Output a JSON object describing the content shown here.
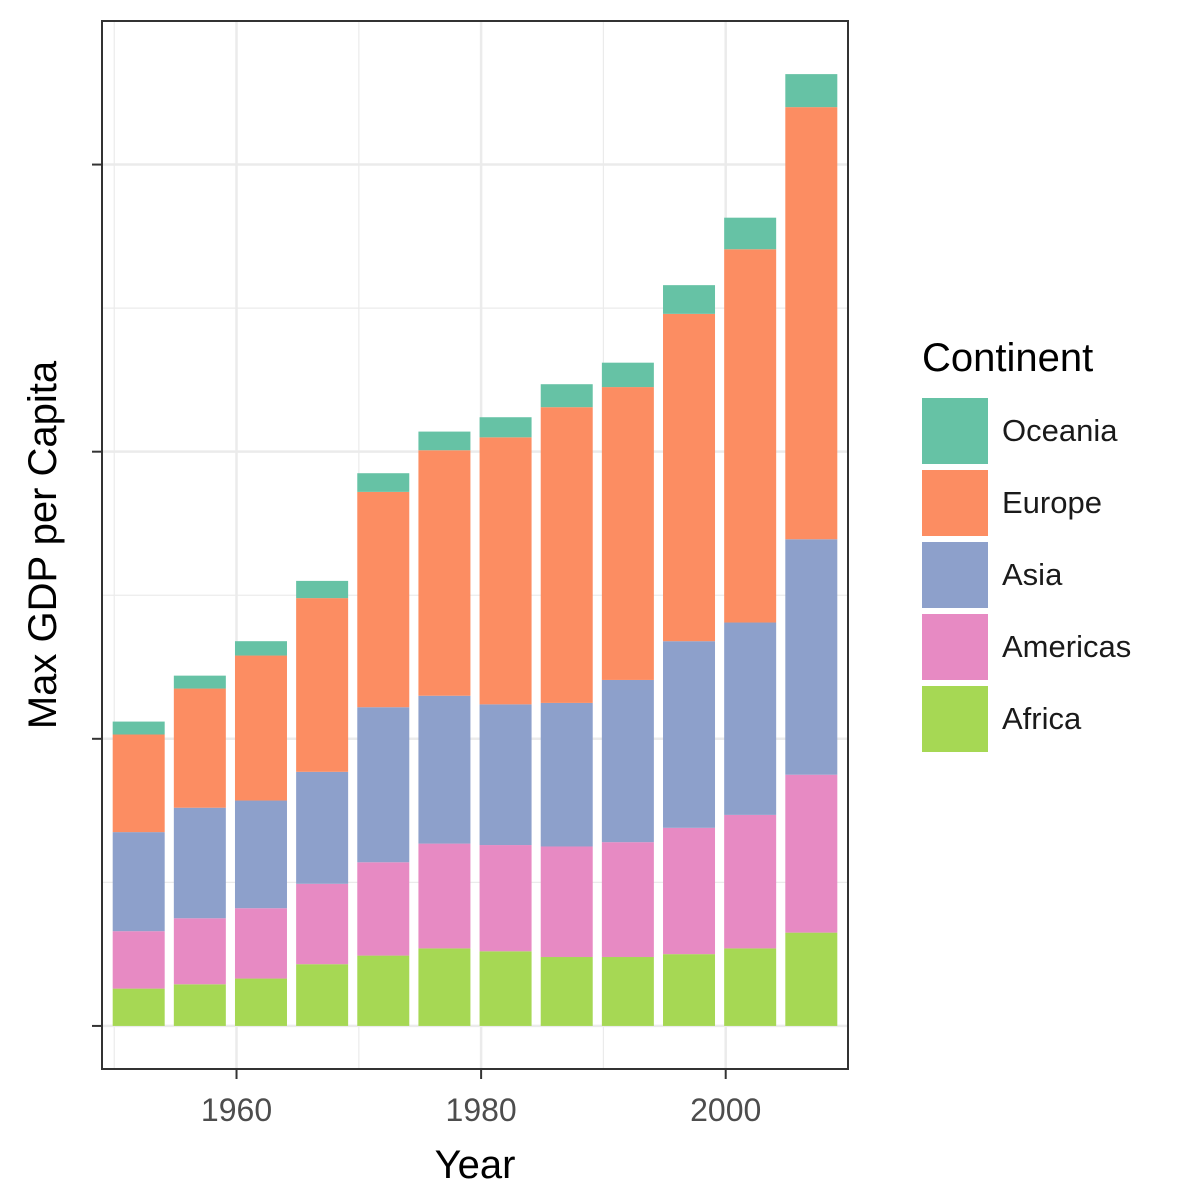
{
  "chart_data": {
    "type": "bar",
    "stacked": true,
    "xlabel": "Year",
    "ylabel": "Max GDP per Capita",
    "x": [
      1952,
      1957,
      1962,
      1967,
      1972,
      1977,
      1982,
      1987,
      1992,
      1997,
      2002,
      2007
    ],
    "x_ticks": [
      "1960",
      "1980",
      "2000"
    ],
    "x_tick_values": [
      1960,
      1980,
      2000
    ],
    "xlim": [
      1949,
      2010
    ],
    "y_tick_labels_shown": false,
    "ylim": [
      -0.15,
      3.5
    ],
    "y_ticks": [
      0,
      1,
      2,
      3
    ],
    "grid": true,
    "legend": {
      "title": "Continent",
      "placement": "right"
    },
    "series": [
      {
        "name": "Africa",
        "color": "#A6D854",
        "values": [
          0.13,
          0.145,
          0.165,
          0.215,
          0.245,
          0.27,
          0.26,
          0.24,
          0.24,
          0.25,
          0.27,
          0.325
        ]
      },
      {
        "name": "Americas",
        "color": "#E78AC3",
        "values": [
          0.2,
          0.23,
          0.245,
          0.28,
          0.325,
          0.365,
          0.37,
          0.385,
          0.4,
          0.44,
          0.465,
          0.55
        ]
      },
      {
        "name": "Asia",
        "color": "#8DA0CB",
        "values": [
          0.345,
          0.385,
          0.375,
          0.39,
          0.54,
          0.515,
          0.49,
          0.5,
          0.565,
          0.65,
          0.67,
          0.82
        ]
      },
      {
        "name": "Europe",
        "color": "#FC8D62",
        "values": [
          0.34,
          0.415,
          0.505,
          0.605,
          0.75,
          0.855,
          0.93,
          1.03,
          1.02,
          1.14,
          1.3,
          1.505
        ]
      },
      {
        "name": "Oceania",
        "color": "#66C2A5",
        "values": [
          0.045,
          0.045,
          0.05,
          0.06,
          0.065,
          0.065,
          0.07,
          0.08,
          0.085,
          0.1,
          0.11,
          0.115
        ]
      }
    ]
  }
}
